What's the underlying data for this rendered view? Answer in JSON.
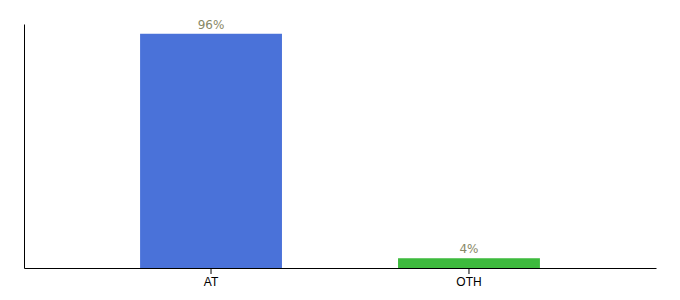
{
  "chart_data": {
    "type": "bar",
    "categories": [
      "AT",
      "OTH"
    ],
    "values": [
      96,
      4
    ],
    "value_labels": [
      "96%",
      "4%"
    ],
    "colors": [
      "#4a72d9",
      "#3dba3d"
    ],
    "ylim": [
      0,
      100
    ],
    "data_labels": true,
    "tick_labels": "x",
    "grid": false
  }
}
